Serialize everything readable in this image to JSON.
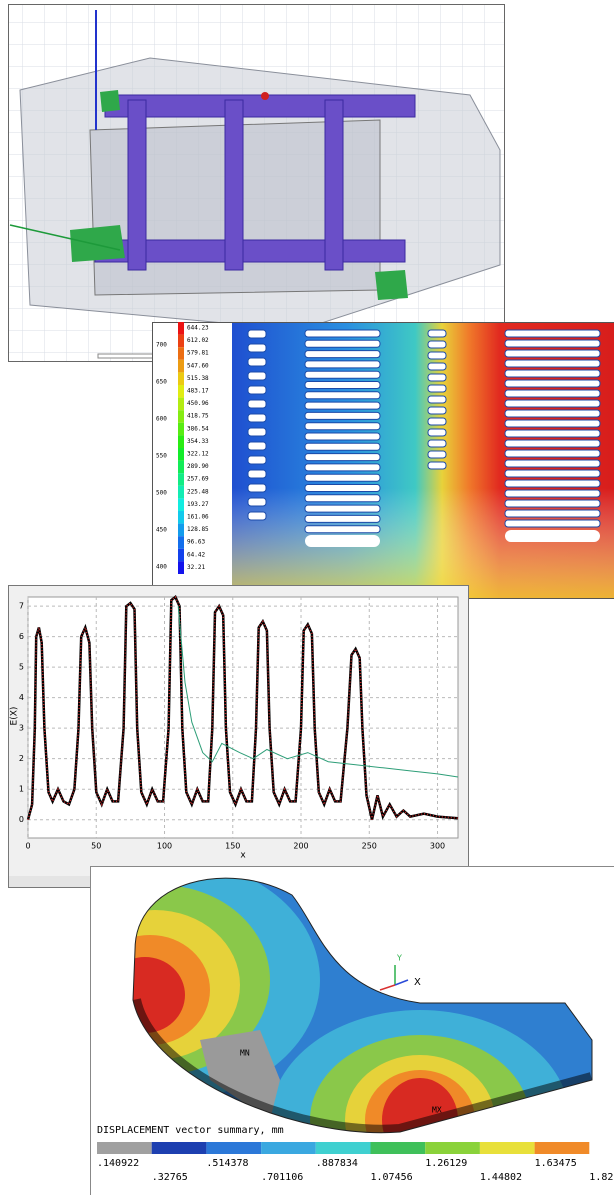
{
  "field_panel": {
    "axis_labels": [
      "700",
      "650",
      "600",
      "550",
      "500",
      "450",
      "400"
    ],
    "legend": [
      "644.23",
      "612.02",
      "579.81",
      "547.60",
      "515.38",
      "483.17",
      "450.96",
      "418.75",
      "386.54",
      "354.33",
      "322.12",
      "289.90",
      "257.69",
      "225.48",
      "193.27",
      "161.06",
      "128.85",
      "96.63",
      "64.42",
      "32.21"
    ]
  },
  "plot_panel": {
    "y_label": "E(X)",
    "x_label": "x",
    "xlim": [
      0,
      315
    ],
    "ylim": [
      -0.6,
      7.3
    ],
    "xticks": [
      0,
      50,
      100,
      150,
      200,
      250,
      300
    ],
    "yticks": [
      0,
      1,
      2,
      3,
      4,
      5,
      6,
      7
    ],
    "grid": true,
    "series": [
      {
        "color": "#000000",
        "x": [
          0,
          3,
          5,
          6,
          8,
          10,
          12,
          15,
          18,
          22,
          26,
          30,
          34,
          37,
          39,
          42,
          45,
          47,
          50,
          54,
          58,
          62,
          66,
          70,
          72,
          75,
          78,
          80,
          83,
          87,
          91,
          95,
          99,
          103,
          105,
          108,
          111,
          113,
          116,
          120,
          124,
          128,
          132,
          135,
          137,
          140,
          143,
          145,
          148,
          152,
          156,
          160,
          164,
          167,
          169,
          172,
          175,
          177,
          180,
          184,
          188,
          192,
          196,
          200,
          202,
          205,
          208,
          210,
          213,
          217,
          221,
          225,
          229,
          234,
          237,
          240,
          243,
          245,
          248,
          252,
          256,
          260,
          265,
          270,
          275,
          280,
          290,
          300,
          315
        ],
        "values": [
          0,
          0.5,
          3,
          6.0,
          6.3,
          5.8,
          3,
          0.9,
          0.6,
          1.0,
          0.6,
          0.5,
          1.0,
          3,
          6.0,
          6.3,
          5.8,
          3,
          0.9,
          0.5,
          1.0,
          0.6,
          0.6,
          3,
          7.0,
          7.1,
          6.9,
          3,
          0.9,
          0.5,
          1.0,
          0.6,
          0.6,
          3,
          7.2,
          7.3,
          7.0,
          3,
          0.9,
          0.5,
          1.0,
          0.6,
          0.6,
          3,
          6.8,
          7.0,
          6.7,
          3,
          0.9,
          0.5,
          1.0,
          0.6,
          0.6,
          3,
          6.3,
          6.5,
          6.2,
          3,
          0.9,
          0.5,
          1.0,
          0.6,
          0.6,
          3,
          6.2,
          6.4,
          6.1,
          3,
          0.9,
          0.5,
          1.0,
          0.6,
          0.6,
          3,
          5.4,
          5.6,
          5.3,
          3,
          0.8,
          0,
          0.8,
          0.1,
          0.5,
          0.1,
          0.3,
          0.1,
          0.2,
          0.1,
          0.05
        ]
      },
      {
        "color": "#2e9e78",
        "x": [
          110,
          115,
          120,
          128,
          135,
          142,
          155,
          165,
          175,
          190,
          205,
          220,
          240,
          260,
          280,
          300,
          315
        ],
        "values": [
          7,
          4.5,
          3.2,
          2.2,
          1.9,
          2.5,
          2.2,
          2.0,
          2.3,
          2.0,
          2.2,
          1.9,
          1.8,
          1.7,
          1.6,
          1.5,
          1.4
        ]
      }
    ]
  },
  "displacement_panel": {
    "axis_y": "Y",
    "axis_x": "X",
    "min_label": "MN",
    "max_label": "MX",
    "caption": "DISPLACEMENT vector summary, mm",
    "legend": [
      ".140922",
      ".32765",
      ".514378",
      ".701106",
      ".887834",
      "1.07456",
      "1.26129",
      "1.44802",
      "1.63475",
      "1.82"
    ]
  }
}
